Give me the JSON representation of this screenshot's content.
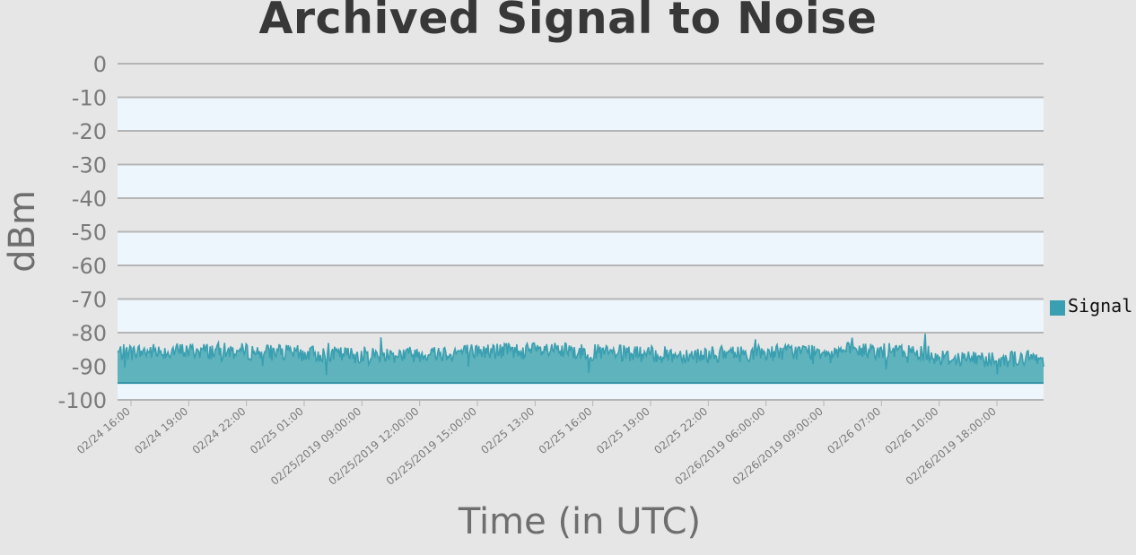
{
  "chart_data": {
    "type": "area",
    "title": "Archived Signal to Noise",
    "xlabel": "Time (in UTC)",
    "ylabel": "dBm",
    "ylim": [
      -100,
      0
    ],
    "y_ticks": [
      "0",
      "-10",
      "-20",
      "-30",
      "-40",
      "-50",
      "-60",
      "-70",
      "-80",
      "-90",
      "-100"
    ],
    "x_tick_labels": [
      "02/24 16:00",
      "02/24 19:00",
      "02/24 22:00",
      "02/25 01:00",
      "02/25/2019 09:00:00",
      "02/25/2019 12:00:00",
      "02/25/2019 15:00:00",
      "02/25 13:00",
      "02/25 16:00",
      "02/25 19:00",
      "02/25 22:00",
      "02/26/2019 06:00:00",
      "02/26/2019 09:00:00",
      "02/26 07:00",
      "02/26 10:00",
      "02/26/2019 18:00:00"
    ],
    "legend": {
      "placement": "right",
      "entries": [
        "Signal"
      ]
    },
    "series": [
      {
        "name": "Signal",
        "color": "#3a9fb0",
        "fill": "#5fb3bd",
        "baseline": -95,
        "value_range": [
          -93,
          -80
        ],
        "typical": -86
      }
    ],
    "grid": true,
    "band_colors": [
      "#eef6fd",
      "#e6e6e6"
    ]
  }
}
